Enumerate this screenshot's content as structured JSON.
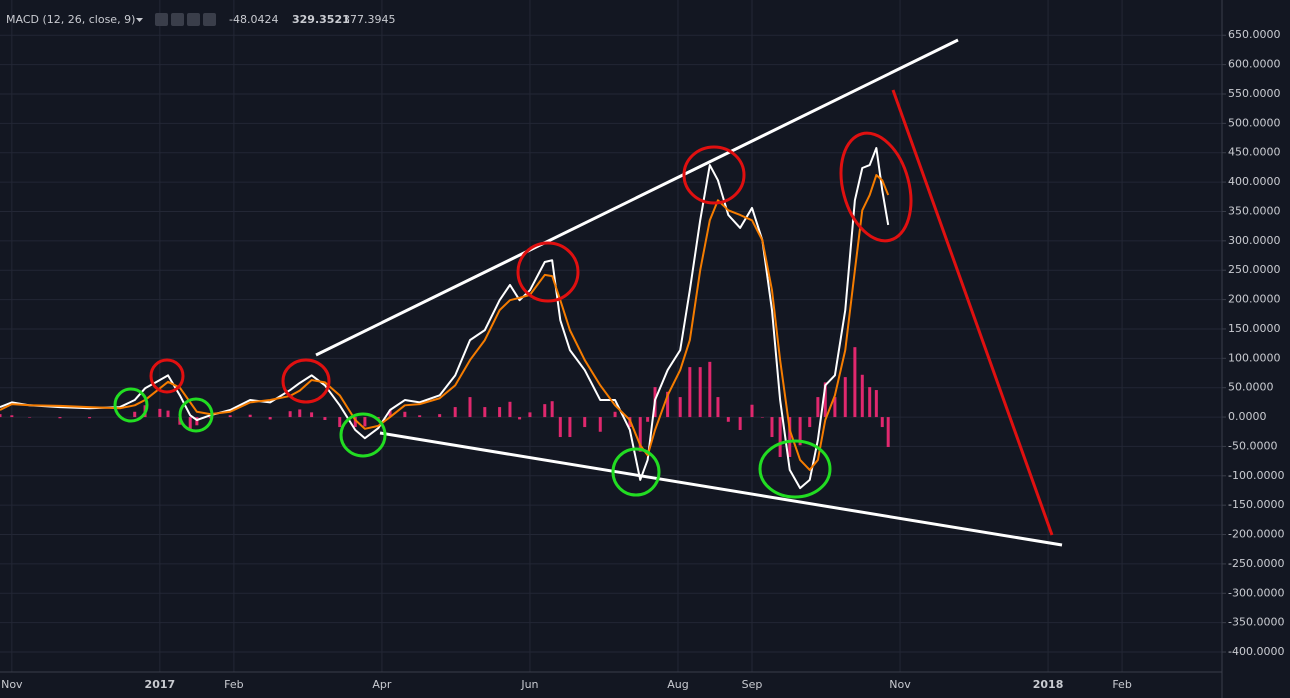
{
  "chart_data": {
    "type": "line",
    "title": "MACD (12, 26, close, 9)",
    "x": [
      -0.16,
      0,
      0.24,
      0.65,
      1.05,
      1.46,
      1.66,
      1.8,
      2,
      2.11,
      2.27,
      2.41,
      2.5,
      2.68,
      2.95,
      3.22,
      3.49,
      3.76,
      3.89,
      4.05,
      4.23,
      4.43,
      4.64,
      4.77,
      4.95,
      5.11,
      5.31,
      5.51,
      5.78,
      5.99,
      6.19,
      6.39,
      6.59,
      6.73,
      6.86,
      7,
      7.2,
      7.3,
      7.41,
      7.54,
      7.74,
      7.95,
      8.15,
      8.35,
      8.49,
      8.59,
      8.69,
      8.86,
      9.03,
      9.16,
      9.3,
      9.43,
      9.54,
      9.68,
      9.84,
      10,
      10.14,
      10.27,
      10.38,
      10.51,
      10.65,
      10.78,
      10.89,
      10.99,
      11.12,
      11.26,
      11.39,
      11.49,
      11.59,
      11.68,
      11.76,
      11.84
    ],
    "xlim": [
      -0.16,
      16.35
    ],
    "xticks": [
      {
        "value": 0,
        "label": "Nov"
      },
      {
        "value": 2,
        "label": "2017"
      },
      {
        "value": 3,
        "label": "Feb"
      },
      {
        "value": 5,
        "label": "Apr"
      },
      {
        "value": 7,
        "label": "Jun"
      },
      {
        "value": 9,
        "label": "Aug"
      },
      {
        "value": 10,
        "label": "Sep"
      },
      {
        "value": 12,
        "label": "Nov"
      },
      {
        "value": 14,
        "label": "2018"
      },
      {
        "value": 15,
        "label": "Feb"
      }
    ],
    "ylim": [
      -434,
      710
    ],
    "yticks": [
      {
        "value": 650,
        "label": "650.0000"
      },
      {
        "value": 600,
        "label": "600.0000"
      },
      {
        "value": 550,
        "label": "550.0000"
      },
      {
        "value": 500,
        "label": "500.0000"
      },
      {
        "value": 450,
        "label": "450.0000"
      },
      {
        "value": 400,
        "label": "400.0000"
      },
      {
        "value": 350,
        "label": "350.0000"
      },
      {
        "value": 300,
        "label": "300.0000"
      },
      {
        "value": 250,
        "label": "250.0000"
      },
      {
        "value": 200,
        "label": "200.0000"
      },
      {
        "value": 150,
        "label": "150.0000"
      },
      {
        "value": 100,
        "label": "100.0000"
      },
      {
        "value": 50,
        "label": "50.0000"
      },
      {
        "value": 0,
        "label": "0.0000"
      },
      {
        "value": -50,
        "label": "-50.0000"
      },
      {
        "value": -100,
        "label": "-100.0000"
      },
      {
        "value": -150,
        "label": "-150.0000"
      },
      {
        "value": -200,
        "label": "-200.0000"
      },
      {
        "value": -250,
        "label": "-250.0000"
      },
      {
        "value": -300,
        "label": "-300.0000"
      },
      {
        "value": -350,
        "label": "-350.0000"
      },
      {
        "value": -400,
        "label": "-400.0000"
      }
    ],
    "grid": true,
    "series": [
      {
        "type": "bar",
        "color": "#e0286e",
        "last": -48.0424,
        "values": [
          5,
          3,
          0,
          -2,
          -2,
          2,
          9,
          20,
          14,
          11,
          -13,
          -22,
          -14,
          -2,
          3,
          4,
          -4,
          10,
          13,
          8,
          -5,
          -17,
          -17,
          -16,
          -4,
          12,
          9,
          3,
          5,
          17,
          34,
          17,
          17,
          26,
          -4,
          8,
          22,
          27,
          -34,
          -34,
          -17,
          -25,
          9,
          -17,
          -59,
          -8,
          51,
          43,
          34,
          85,
          85,
          94,
          34,
          -8,
          -22,
          21,
          0,
          -34,
          -68,
          -68,
          -48,
          -17,
          34,
          59,
          34,
          68,
          119,
          72,
          51,
          46,
          -17,
          -51
        ]
      },
      {
        "color": "#ffffff",
        "last": 329.3521,
        "values": [
          17,
          25,
          20,
          17,
          15,
          17,
          29,
          49,
          63,
          71,
          37,
          3,
          -5,
          3,
          12,
          29,
          25,
          46,
          58,
          71,
          54,
          20,
          -22,
          -36,
          -19,
          12,
          29,
          25,
          37,
          71,
          131,
          148,
          199,
          225,
          199,
          216,
          264,
          267,
          165,
          114,
          80,
          29,
          29,
          -22,
          -107,
          -73,
          29,
          80,
          114,
          216,
          335,
          429,
          403,
          344,
          322,
          356,
          301,
          182,
          29,
          -90,
          -121,
          -107,
          -39,
          54,
          71,
          182,
          369,
          424,
          429,
          458,
          386,
          327
        ]
      },
      {
        "color": "#f57c00",
        "last": 377.3945,
        "values": [
          12,
          22,
          20,
          19,
          17,
          15,
          20,
          29,
          49,
          60,
          50,
          25,
          9,
          5,
          9,
          25,
          29,
          36,
          45,
          63,
          59,
          37,
          -5,
          -20,
          -15,
          0,
          20,
          22,
          32,
          54,
          97,
          131,
          182,
          199,
          203,
          208,
          242,
          240,
          199,
          148,
          97,
          54,
          20,
          -5,
          -48,
          -65,
          -22,
          37,
          80,
          131,
          250,
          335,
          369,
          352,
          344,
          335,
          301,
          216,
          97,
          -22,
          -73,
          -90,
          -73,
          -5,
          37,
          114,
          250,
          352,
          378,
          412,
          403,
          378
        ]
      }
    ]
  }
}
